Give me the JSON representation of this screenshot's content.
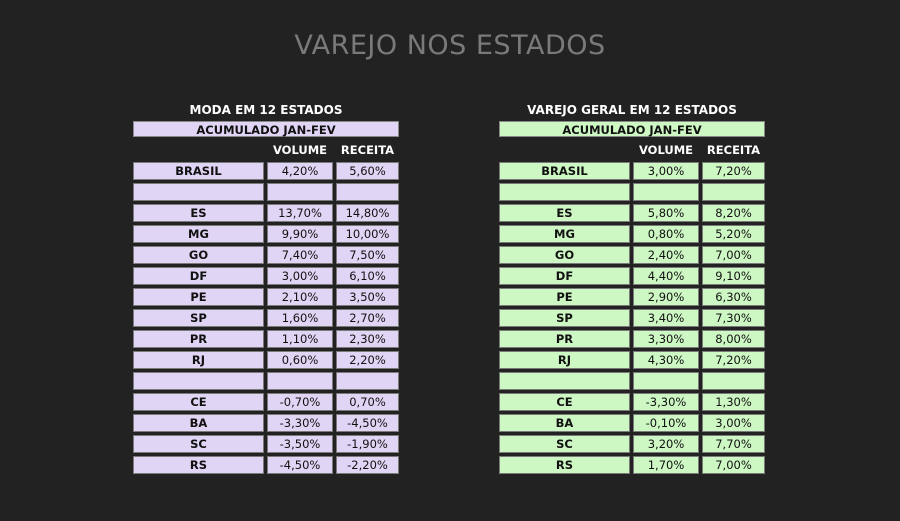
{
  "title": "VAREJO NOS ESTADOS",
  "colors": {
    "background": "#222222",
    "moda_fill": "#e1d5f5",
    "varejo_fill": "#cdf7c3"
  },
  "chart_data": [
    {
      "type": "table",
      "title": "MODA EM 12 ESTADOS",
      "subtitle": "ACUMULADO JAN-FEV",
      "columns": [
        "VOLUME",
        "RECEITA"
      ],
      "rows": [
        {
          "label": "BRASIL",
          "volume": "4,20%",
          "receita": "5,60%"
        },
        {
          "label": "",
          "volume": "",
          "receita": ""
        },
        {
          "label": "ES",
          "volume": "13,70%",
          "receita": "14,80%"
        },
        {
          "label": "MG",
          "volume": "9,90%",
          "receita": "10,00%"
        },
        {
          "label": "GO",
          "volume": "7,40%",
          "receita": "7,50%"
        },
        {
          "label": "DF",
          "volume": "3,00%",
          "receita": "6,10%"
        },
        {
          "label": "PE",
          "volume": "2,10%",
          "receita": "3,50%"
        },
        {
          "label": "SP",
          "volume": "1,60%",
          "receita": "2,70%"
        },
        {
          "label": "PR",
          "volume": "1,10%",
          "receita": "2,30%"
        },
        {
          "label": "RJ",
          "volume": "0,60%",
          "receita": "2,20%"
        },
        {
          "label": "",
          "volume": "",
          "receita": ""
        },
        {
          "label": "CE",
          "volume": "-0,70%",
          "receita": "0,70%"
        },
        {
          "label": "BA",
          "volume": "-3,30%",
          "receita": "-4,50%"
        },
        {
          "label": "SC",
          "volume": "-3,50%",
          "receita": "-1,90%"
        },
        {
          "label": "RS",
          "volume": "-4,50%",
          "receita": "-2,20%"
        }
      ]
    },
    {
      "type": "table",
      "title": "VAREJO GERAL EM 12 ESTADOS",
      "subtitle": "ACUMULADO JAN-FEV",
      "columns": [
        "VOLUME",
        "RECEITA"
      ],
      "rows": [
        {
          "label": "BRASIL",
          "volume": "3,00%",
          "receita": "7,20%"
        },
        {
          "label": "",
          "volume": "",
          "receita": ""
        },
        {
          "label": "ES",
          "volume": "5,80%",
          "receita": "8,20%"
        },
        {
          "label": "MG",
          "volume": "0,80%",
          "receita": "5,20%"
        },
        {
          "label": "GO",
          "volume": "2,40%",
          "receita": "7,00%"
        },
        {
          "label": "DF",
          "volume": "4,40%",
          "receita": "9,10%"
        },
        {
          "label": "PE",
          "volume": "2,90%",
          "receita": "6,30%"
        },
        {
          "label": "SP",
          "volume": "3,40%",
          "receita": "7,30%"
        },
        {
          "label": "PR",
          "volume": "3,30%",
          "receita": "8,00%"
        },
        {
          "label": "RJ",
          "volume": "4,30%",
          "receita": "7,20%"
        },
        {
          "label": "",
          "volume": "",
          "receita": ""
        },
        {
          "label": "CE",
          "volume": "-3,30%",
          "receita": "1,30%"
        },
        {
          "label": "BA",
          "volume": "-0,10%",
          "receita": "3,00%"
        },
        {
          "label": "SC",
          "volume": "3,20%",
          "receita": "7,70%"
        },
        {
          "label": "RS",
          "volume": "1,70%",
          "receita": "7,00%"
        }
      ]
    }
  ]
}
